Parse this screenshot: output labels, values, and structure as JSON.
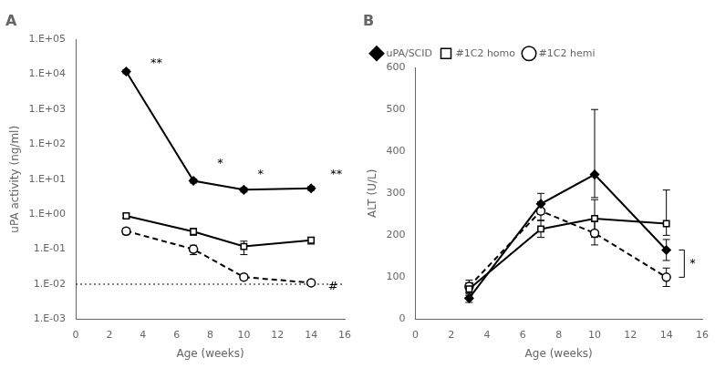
{
  "chart_data": [
    {
      "type": "line",
      "title": "A",
      "x_label": "Age (weeks)",
      "y_label": "uPA activity (ng/ml)",
      "xlim": [
        0,
        16
      ],
      "xticks": [
        0,
        2,
        4,
        6,
        8,
        10,
        12,
        14,
        16
      ],
      "log": "y",
      "ylim": [
        0.001,
        100000
      ],
      "yticks": [
        {
          "value": 0.001,
          "label": "1.E-03"
        },
        {
          "value": 0.01,
          "label": "1.E-02"
        },
        {
          "value": 0.1,
          "label": "1.E-01"
        },
        {
          "value": 1,
          "label": "1.E+00"
        },
        {
          "value": 10,
          "label": "1.E+01"
        },
        {
          "value": 100,
          "label": "1.E+02"
        },
        {
          "value": 1000,
          "label": "1.E+03"
        },
        {
          "value": 10000,
          "label": "1.E+04"
        },
        {
          "value": 100000,
          "label": "1.E+05"
        }
      ],
      "grid": false,
      "series": [
        {
          "color": "black",
          "marker": "diamond",
          "line_style": "solid",
          "x": [
            3,
            7,
            10,
            14
          ],
          "values": [
            12000,
            9.0,
            5.0,
            5.5
          ],
          "yerr_low": [
            1500,
            1.2,
            0.7,
            0.7
          ],
          "yerr_high": [
            1500,
            1.2,
            0.7,
            0.7
          ]
        },
        {
          "color": "black",
          "marker": "open_square",
          "line_style": "solid",
          "x": [
            3,
            7,
            10,
            14
          ],
          "values": [
            0.9,
            0.32,
            0.12,
            0.18
          ],
          "yerr_low": [
            0.12,
            0.07,
            0.05,
            0.04
          ],
          "yerr_high": [
            0.12,
            0.07,
            0.05,
            0.04
          ]
        },
        {
          "color": "black",
          "marker": "open_circle",
          "line_style": "dashed",
          "x": [
            3,
            7,
            10,
            14
          ],
          "values": [
            0.33,
            0.1,
            0.016,
            0.011
          ],
          "yerr_low": [
            0.07,
            0.03,
            0.003,
            0.001
          ],
          "yerr_high": [
            0.07,
            0.03,
            0.003,
            0.001
          ]
        }
      ],
      "hlines": [
        {
          "y": 0.01,
          "line_style": "dotted",
          "color": "black"
        }
      ],
      "annotations": [
        {
          "text": "**",
          "x": 4.8,
          "y": 20000
        },
        {
          "text": "*",
          "x": 8.6,
          "y": 28.0
        },
        {
          "text": "*",
          "x": 11.0,
          "y": 14.0
        },
        {
          "text": "**",
          "x": 15.5,
          "y": 14.0
        },
        {
          "text": "#",
          "x": 15.3,
          "y": 0.0085
        }
      ]
    },
    {
      "type": "line",
      "title": "B",
      "x_label": "Age (weeks)",
      "y_label": "ALT (U/L)",
      "xlim": [
        0,
        16
      ],
      "xticks": [
        0,
        2,
        4,
        6,
        8,
        10,
        12,
        14,
        16
      ],
      "ylim": [
        0,
        600
      ],
      "yticks": [
        0,
        100,
        200,
        300,
        400,
        500,
        600
      ],
      "grid": false,
      "legend": "upper left",
      "series": [
        {
          "name": "uPA/SCID",
          "color": "black",
          "marker": "diamond",
          "line_style": "solid",
          "x": [
            3,
            7,
            10,
            14
          ],
          "values": [
            50,
            275,
            345,
            165
          ],
          "yerr_low": [
            10,
            25,
            55,
            25
          ],
          "yerr_high": [
            10,
            25,
            155,
            25
          ]
        },
        {
          "name": "#1C2 homo",
          "color": "black",
          "marker": "open_square",
          "line_style": "solid",
          "x": [
            3,
            7,
            10,
            14
          ],
          "values": [
            72,
            215,
            240,
            228
          ],
          "yerr_low": [
            15,
            20,
            45,
            28
          ],
          "yerr_high": [
            15,
            20,
            45,
            80
          ]
        },
        {
          "name": "#1C2 hemi",
          "color": "black",
          "marker": "open_circle",
          "line_style": "dashed",
          "x": [
            3,
            7,
            10,
            14
          ],
          "values": [
            78,
            258,
            205,
            100
          ],
          "yerr_low": [
            15,
            22,
            28,
            22
          ],
          "yerr_high": [
            15,
            22,
            28,
            22
          ]
        }
      ],
      "brackets": [
        {
          "x": 15.0,
          "x_tick": 14.7,
          "y1": 165,
          "y2": 100,
          "text": "*",
          "text_x": 15.3
        }
      ]
    }
  ]
}
